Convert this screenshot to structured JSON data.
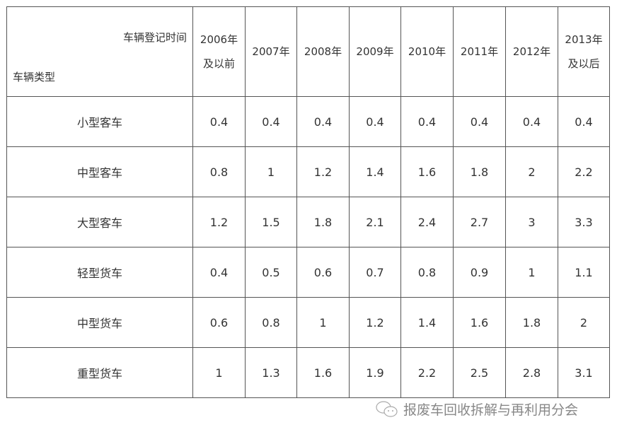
{
  "table": {
    "corner": {
      "top_label": "车辆登记时间",
      "bottom_label": "车辆类型"
    },
    "columns": [
      [
        "2006年",
        "及以前"
      ],
      [
        "2007年"
      ],
      [
        "2008年"
      ],
      [
        "2009年"
      ],
      [
        "2010年"
      ],
      [
        "2011年"
      ],
      [
        "2012年"
      ],
      [
        "2013年",
        "及以后"
      ]
    ],
    "rows": [
      {
        "type": "小型客车",
        "values": [
          "0.4",
          "0.4",
          "0.4",
          "0.4",
          "0.4",
          "0.4",
          "0.4",
          "0.4"
        ]
      },
      {
        "type": "中型客车",
        "values": [
          "0.8",
          "1",
          "1.2",
          "1.4",
          "1.6",
          "1.8",
          "2",
          "2.2"
        ]
      },
      {
        "type": "大型客车",
        "values": [
          "1.2",
          "1.5",
          "1.8",
          "2.1",
          "2.4",
          "2.7",
          "3",
          "3.3"
        ]
      },
      {
        "type": "轻型货车",
        "values": [
          "0.4",
          "0.5",
          "0.6",
          "0.7",
          "0.8",
          "0.9",
          "1",
          "1.1"
        ]
      },
      {
        "type": "中型货车",
        "values": [
          "0.6",
          "0.8",
          "1",
          "1.2",
          "1.4",
          "1.6",
          "1.8",
          "2"
        ]
      },
      {
        "type": "重型货车",
        "values": [
          "1",
          "1.3",
          "1.6",
          "1.9",
          "2.2",
          "2.5",
          "2.8",
          "3.1"
        ]
      }
    ]
  },
  "watermark": {
    "icon": "wechat-icon",
    "text": "报废车回收拆解与再利用分会"
  }
}
